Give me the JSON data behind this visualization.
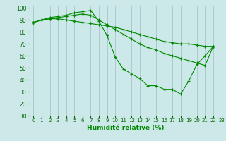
{
  "title": "",
  "xlabel": "Humidité relative (%)",
  "ylabel": "",
  "bg_color": "#cce8e8",
  "grid_color": "#aacccc",
  "line_color": "#008800",
  "marker": "+",
  "xlim": [
    -0.5,
    23
  ],
  "ylim": [
    10,
    102
  ],
  "yticks": [
    10,
    20,
    30,
    40,
    50,
    60,
    70,
    80,
    90,
    100
  ],
  "xticks": [
    0,
    1,
    2,
    3,
    4,
    5,
    6,
    7,
    8,
    9,
    10,
    11,
    12,
    13,
    14,
    15,
    16,
    17,
    18,
    19,
    20,
    21,
    22,
    23
  ],
  "series": [
    [
      88,
      90,
      92,
      93,
      94,
      96,
      97,
      98,
      89,
      77,
      59,
      49,
      45,
      41,
      35,
      35,
      32,
      32,
      28,
      39,
      53,
      60,
      68
    ],
    [
      88,
      90,
      91,
      91,
      90,
      89,
      88,
      87,
      86,
      85,
      84,
      82,
      80,
      78,
      76,
      74,
      72,
      71,
      70,
      70,
      69,
      68,
      68
    ],
    [
      88,
      90,
      91,
      92,
      93,
      94,
      95,
      94,
      90,
      86,
      82,
      78,
      74,
      70,
      67,
      65,
      62,
      60,
      58,
      56,
      54,
      52,
      68
    ]
  ]
}
